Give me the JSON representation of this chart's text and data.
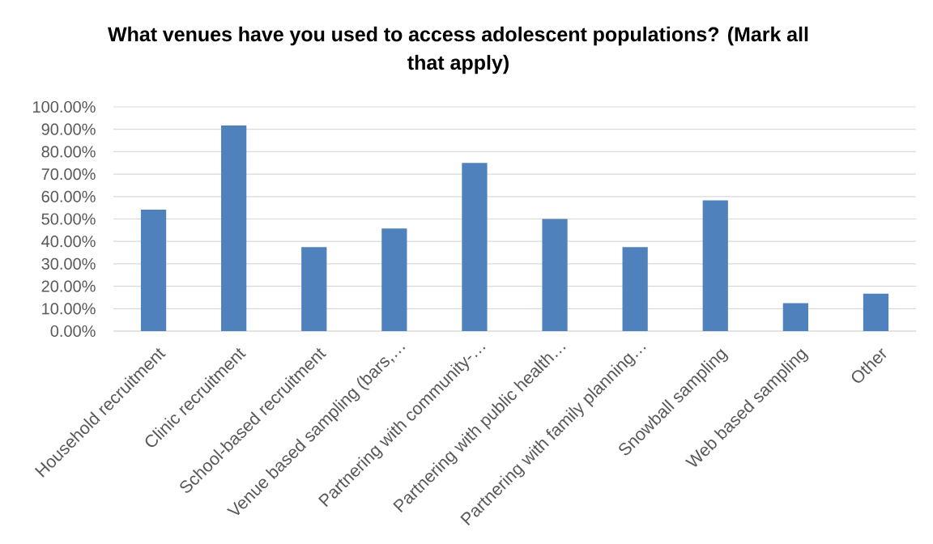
{
  "chart_data": {
    "type": "bar",
    "title": "What venues have you used to access adolescent populations? (Mark all that apply)",
    "categories": [
      "Household recruitment",
      "Clinic recruitment",
      "School-based recruitment",
      "Venue based sampling (bars,…",
      "Partnering with community-…",
      "Partnering with public health…",
      "Partnering with family planning…",
      "Snowball sampling",
      "Web based sampling",
      "Other"
    ],
    "values": [
      54.2,
      91.7,
      37.5,
      45.8,
      75,
      50,
      37.5,
      58.3,
      12.5,
      16.7
    ],
    "color": "#4f81bd",
    "ylim": [
      0,
      100
    ],
    "yticks": [
      {
        "value": 0,
        "label": "0.00%"
      },
      {
        "value": 10,
        "label": "10.00%"
      },
      {
        "value": 20,
        "label": "20.00%"
      },
      {
        "value": 30,
        "label": "30.00%"
      },
      {
        "value": 40,
        "label": "40.00%"
      },
      {
        "value": 50,
        "label": "50.00%"
      },
      {
        "value": 60,
        "label": "60.00%"
      },
      {
        "value": 70,
        "label": "70.00%"
      },
      {
        "value": 80,
        "label": "80.00%"
      },
      {
        "value": 90,
        "label": "90.00%"
      },
      {
        "value": 100,
        "label": "100.00%"
      }
    ],
    "grid": "y"
  }
}
